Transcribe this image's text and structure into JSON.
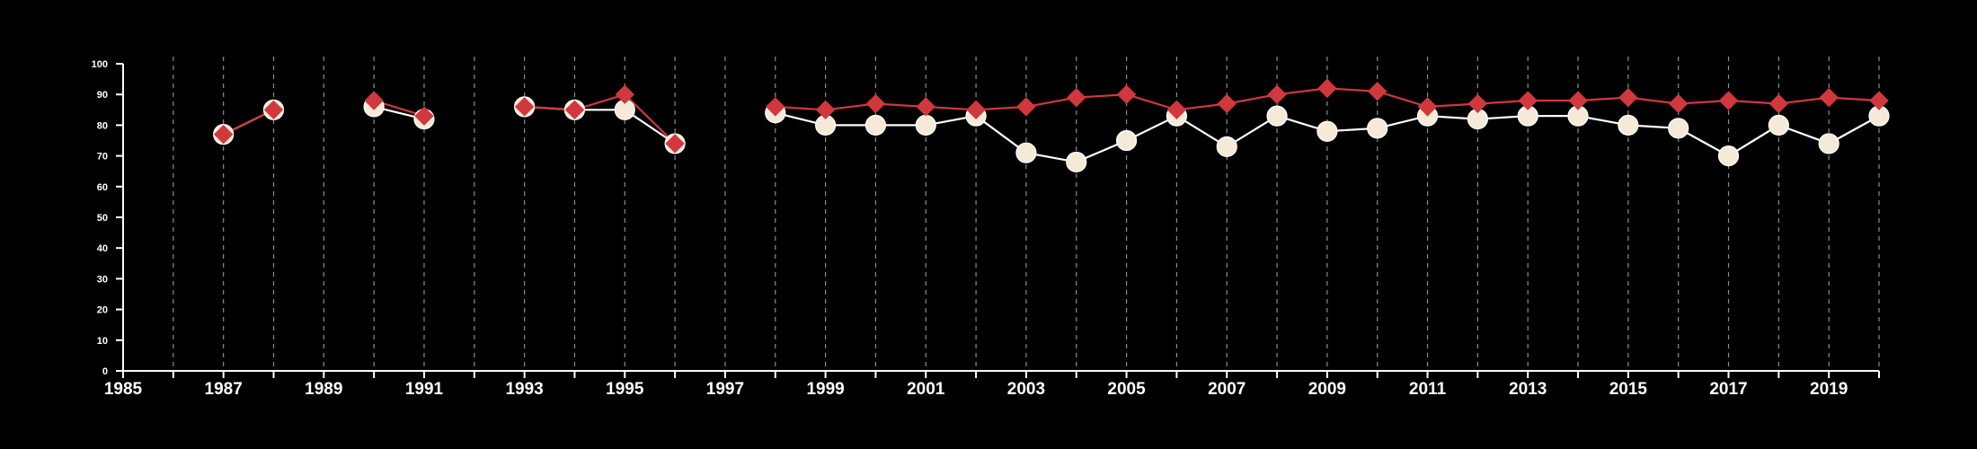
{
  "chart_data": {
    "type": "line",
    "title": "",
    "xlabel": "",
    "ylabel": "",
    "xlim": [
      1985,
      2020
    ],
    "ylim": [
      0,
      100
    ],
    "x_ticks": [
      1985,
      1987,
      1989,
      1991,
      1993,
      1995,
      1997,
      1999,
      2001,
      2003,
      2005,
      2007,
      2009,
      2011,
      2013,
      2015,
      2017,
      2019
    ],
    "y_ticks": [
      0,
      10,
      20,
      30,
      40,
      50,
      60,
      70,
      80,
      90,
      100
    ],
    "x_tick_labels": [
      "1985",
      "1987",
      "1989",
      "1991",
      "1993",
      "1995",
      "1997",
      "1999",
      "2001",
      "2003",
      "2005",
      "2007",
      "2009",
      "2011",
      "2013",
      "2015",
      "2017",
      "2019"
    ],
    "y_tick_labels": [
      "0",
      "10",
      "20",
      "30",
      "40",
      "50",
      "60",
      "70",
      "80",
      "90",
      "100"
    ],
    "grid": {
      "vertical_dashed": true,
      "horizontal": false
    },
    "legend": false,
    "background_color": "#000000",
    "axis_color": "#ffffff",
    "series": [
      {
        "marker": "circle",
        "color": "#f5ead8",
        "line_color": "#ffffff",
        "points": [
          [
            1987,
            77
          ],
          [
            1988,
            85
          ],
          [
            1990,
            86
          ],
          [
            1991,
            82
          ],
          [
            1993,
            86
          ],
          [
            1994,
            85
          ],
          [
            1995,
            85
          ],
          [
            1996,
            74
          ],
          [
            1998,
            84
          ],
          [
            1999,
            80
          ],
          [
            2000,
            80
          ],
          [
            2001,
            80
          ],
          [
            2002,
            83
          ],
          [
            2003,
            71
          ],
          [
            2004,
            68
          ],
          [
            2005,
            75
          ],
          [
            2006,
            83
          ],
          [
            2007,
            73
          ],
          [
            2008,
            83
          ],
          [
            2009,
            78
          ],
          [
            2010,
            79
          ],
          [
            2011,
            83
          ],
          [
            2012,
            82
          ],
          [
            2013,
            83
          ],
          [
            2014,
            83
          ],
          [
            2015,
            80
          ],
          [
            2016,
            79
          ],
          [
            2017,
            70
          ],
          [
            2018,
            80
          ],
          [
            2019,
            74
          ],
          [
            2020,
            83
          ]
        ]
      },
      {
        "marker": "diamond",
        "color": "#d0383d",
        "line_color": "#d0383d",
        "points": [
          [
            1987,
            77
          ],
          [
            1988,
            85
          ],
          [
            1990,
            88
          ],
          [
            1991,
            83
          ],
          [
            1993,
            86
          ],
          [
            1994,
            85
          ],
          [
            1995,
            90
          ],
          [
            1996,
            74
          ],
          [
            1998,
            86
          ],
          [
            1999,
            85
          ],
          [
            2000,
            87
          ],
          [
            2001,
            86
          ],
          [
            2002,
            85
          ],
          [
            2003,
            86
          ],
          [
            2004,
            89
          ],
          [
            2005,
            90
          ],
          [
            2006,
            85
          ],
          [
            2007,
            87
          ],
          [
            2008,
            90
          ],
          [
            2009,
            92
          ],
          [
            2010,
            91
          ],
          [
            2011,
            86
          ],
          [
            2012,
            87
          ],
          [
            2013,
            88
          ],
          [
            2014,
            88
          ],
          [
            2015,
            89
          ],
          [
            2016,
            87
          ],
          [
            2017,
            88
          ],
          [
            2018,
            87
          ],
          [
            2019,
            89
          ],
          [
            2020,
            88
          ]
        ]
      }
    ]
  }
}
